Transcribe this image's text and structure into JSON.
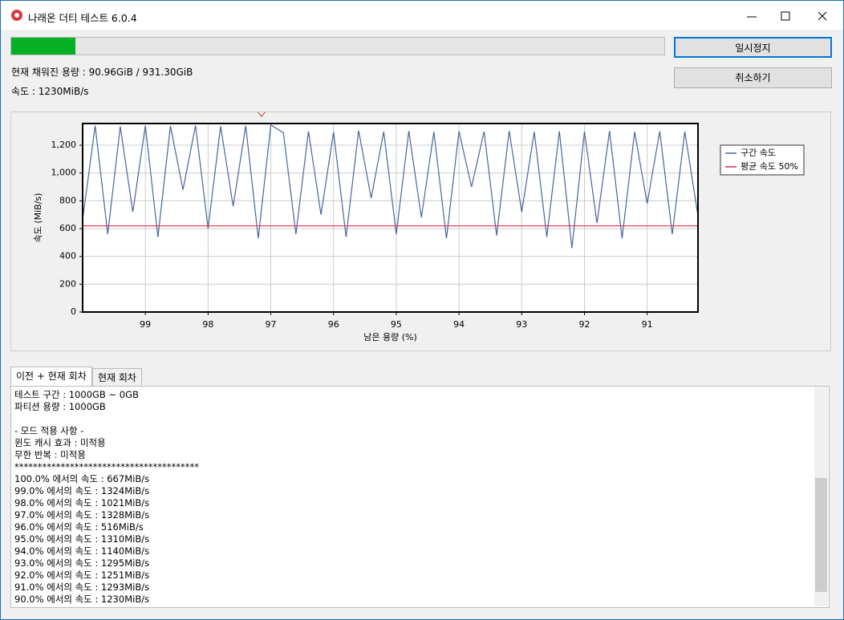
{
  "window": {
    "title": "나래온 더티 테스트 6.0.4"
  },
  "progress": {
    "value": 9.8,
    "range": [
      0,
      100
    ]
  },
  "status": {
    "capacity": "현재 채워진 용량 : 90.96GiB / 931.30GiB",
    "speed": "속도 : 1230MiB/s"
  },
  "buttons": {
    "pause": "일시정지",
    "cancel": "취소하기"
  },
  "chart_data": {
    "type": "line",
    "x_label": "남은 용량 (%)",
    "y_label": "속도 (MiB/s)",
    "xlim": [
      100,
      90.19
    ],
    "xticks": [
      99,
      98,
      97,
      96,
      95,
      94,
      93,
      92,
      91
    ],
    "ylim": [
      0,
      1356
    ],
    "yticks": [
      0,
      200,
      400,
      600,
      800,
      {
        "value": 1000,
        "label": "1,000"
      },
      {
        "value": 1200,
        "label": "1,200"
      }
    ],
    "grid": true,
    "legend": "right",
    "series": [
      {
        "name": "구간 속도",
        "color": "#4565a0",
        "x": [
          100.0,
          99.8,
          99.6,
          99.4,
          99.2,
          99.0,
          98.8,
          98.6,
          98.4,
          98.2,
          98.0,
          97.8,
          97.6,
          97.4,
          97.2,
          97.0,
          96.8,
          96.6,
          96.4,
          96.2,
          96.0,
          95.8,
          95.6,
          95.4,
          95.2,
          95.0,
          94.8,
          94.6,
          94.4,
          94.2,
          94.0,
          93.8,
          93.6,
          93.4,
          93.2,
          93.0,
          92.8,
          92.6,
          92.4,
          92.2,
          92.0,
          91.8,
          91.6,
          91.4,
          91.2,
          91.0,
          90.8,
          90.6,
          90.4,
          90.2
        ],
        "values": [
          667,
          1340,
          560,
          1335,
          720,
          1340,
          540,
          1338,
          880,
          1342,
          600,
          1336,
          760,
          1340,
          530,
          1345,
          1290,
          560,
          1300,
          700,
          1295,
          540,
          1305,
          820,
          1298,
          560,
          1302,
          680,
          1296,
          530,
          1300,
          900,
          1298,
          550,
          1303,
          720,
          1296,
          540,
          1300,
          460,
          1298,
          640,
          1302,
          530,
          1296,
          780,
          1300,
          560,
          1298,
          720
        ]
      },
      {
        "name": "평균 속도 50%",
        "color": "#d9364a",
        "x": [
          100,
          90.2
        ],
        "values": [
          620,
          620
        ]
      }
    ]
  },
  "tabs": [
    "이전 + 현재 회차",
    "현재 회차"
  ],
  "log": {
    "lines": [
      "테스트 구간 : 1000GB ~ 0GB",
      "파티션 용량 : 1000GB",
      "",
      "- 모드 적용 사항 -",
      "윈도 캐시 효과 : 미적용",
      "무한 반복 : 미적용",
      "****************************************",
      "100.0% 에서의 속도 : 667MiB/s",
      "99.0% 에서의 속도 : 1324MiB/s",
      "98.0% 에서의 속도 : 1021MiB/s",
      "97.0% 에서의 속도 : 1328MiB/s",
      "96.0% 에서의 속도 : 516MiB/s",
      "95.0% 에서의 속도 : 1310MiB/s",
      "94.0% 에서의 속도 : 1140MiB/s",
      "93.0% 에서의 속도 : 1295MiB/s",
      "92.0% 에서의 속도 : 1251MiB/s",
      "91.0% 에서의 속도 : 1293MiB/s",
      "90.0% 에서의 속도 : 1230MiB/s"
    ]
  }
}
